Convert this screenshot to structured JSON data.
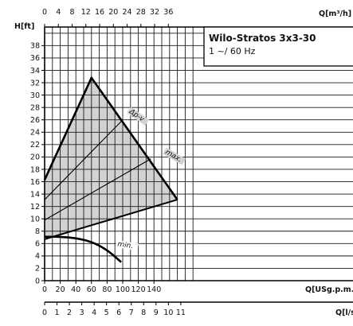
{
  "chart_data": {
    "type": "line",
    "title": "Wilo-Stratos 3x3-30",
    "subtitle": "1 ~/ 60 Hz",
    "ylabel": "H[ft]",
    "xlabel": "Q[USg.p.m.]",
    "top_axis_label": "Q[m³/h]",
    "bottom2_axis_label": "Q[l/s]",
    "xlim": [
      0,
      190
    ],
    "ylim": [
      0,
      40
    ],
    "grid": true,
    "legend_placement": "top-right",
    "y_ticks": [
      0,
      2,
      4,
      6,
      8,
      10,
      12,
      14,
      16,
      18,
      20,
      22,
      24,
      26,
      28,
      30,
      32,
      34,
      36,
      38
    ],
    "x_ticks": [
      0,
      20,
      40,
      60,
      80,
      100,
      120,
      140
    ],
    "top_ticks": [
      0,
      4,
      8,
      12,
      16,
      20,
      24,
      28,
      32,
      36
    ],
    "ls_ticks": [
      0,
      1,
      2,
      3,
      4,
      5,
      6,
      7,
      8,
      9,
      10,
      11
    ],
    "operating_area": {
      "name": "",
      "points": [
        [
          0,
          16.3
        ],
        [
          60,
          32.8
        ],
        [
          170,
          13.1
        ],
        [
          0,
          6.7
        ],
        [
          0,
          7.6
        ]
      ]
    },
    "series": [
      {
        "name": "max.",
        "x": [
          0,
          60,
          170
        ],
        "y": [
          16.3,
          32.8,
          13.1
        ]
      },
      {
        "name": "Δp-v",
        "x": [
          0,
          100
        ],
        "y": [
          13.1,
          26
        ]
      },
      {
        "name": "",
        "x": [
          0,
          136
        ],
        "y": [
          9.8,
          19.7
        ]
      },
      {
        "name": "",
        "x": [
          0,
          170
        ],
        "y": [
          6.7,
          13.1
        ]
      },
      {
        "name": "min.",
        "x": [
          0,
          20,
          40,
          60,
          80,
          98
        ],
        "y": [
          7.1,
          7.1,
          6.9,
          6.3,
          5.0,
          3.0
        ]
      }
    ],
    "curve_labels": [
      "Δp-v",
      "max.",
      "min."
    ],
    "colors": {
      "area_fill": "#d2d2d2",
      "lines": "#000000"
    }
  }
}
